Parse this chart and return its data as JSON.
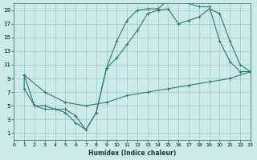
{
  "xlabel": "Humidex (Indice chaleur)",
  "bg_color": "#cceae6",
  "grid_color": "#aad4cf",
  "line_color": "#2d7a6e",
  "xlim": [
    0,
    23
  ],
  "ylim": [
    0,
    20
  ],
  "xticks": [
    0,
    1,
    2,
    3,
    4,
    5,
    6,
    7,
    8,
    9,
    10,
    11,
    12,
    13,
    14,
    15,
    16,
    17,
    18,
    19,
    20,
    21,
    22,
    23
  ],
  "yticks": [
    1,
    3,
    5,
    7,
    9,
    11,
    13,
    15,
    17,
    19
  ],
  "line1_x": [
    1,
    1,
    2,
    3,
    4,
    5,
    6,
    7,
    8,
    9,
    10,
    11,
    12,
    13,
    14,
    15,
    16,
    17,
    18,
    19,
    20,
    21,
    22,
    23
  ],
  "line1_y": [
    9.5,
    7.5,
    5,
    4.5,
    4.5,
    4,
    2.5,
    1.5,
    4,
    10.5,
    14.5,
    17.5,
    19,
    19.2,
    19.2,
    20.5,
    20.5,
    20,
    19.5,
    19.5,
    14.5,
    11.5,
    10,
    10
  ],
  "line2_x": [
    1,
    2,
    3,
    4,
    5,
    6,
    7,
    8,
    9,
    10,
    11,
    12,
    13,
    14,
    15,
    16,
    17,
    18,
    19,
    20,
    21,
    22,
    23
  ],
  "line2_y": [
    9.5,
    5,
    5,
    4.5,
    4.5,
    3.5,
    1.5,
    4,
    10.5,
    12,
    14,
    16,
    18.5,
    19,
    19.2,
    17,
    17.5,
    18,
    19.2,
    18.5,
    14.5,
    11,
    10
  ],
  "line3_x": [
    1,
    3,
    5,
    7,
    9,
    11,
    13,
    15,
    17,
    19,
    21,
    23
  ],
  "line3_y": [
    9.5,
    7,
    5.5,
    5,
    5.5,
    6.5,
    7,
    7.5,
    8,
    8.5,
    9,
    10
  ]
}
